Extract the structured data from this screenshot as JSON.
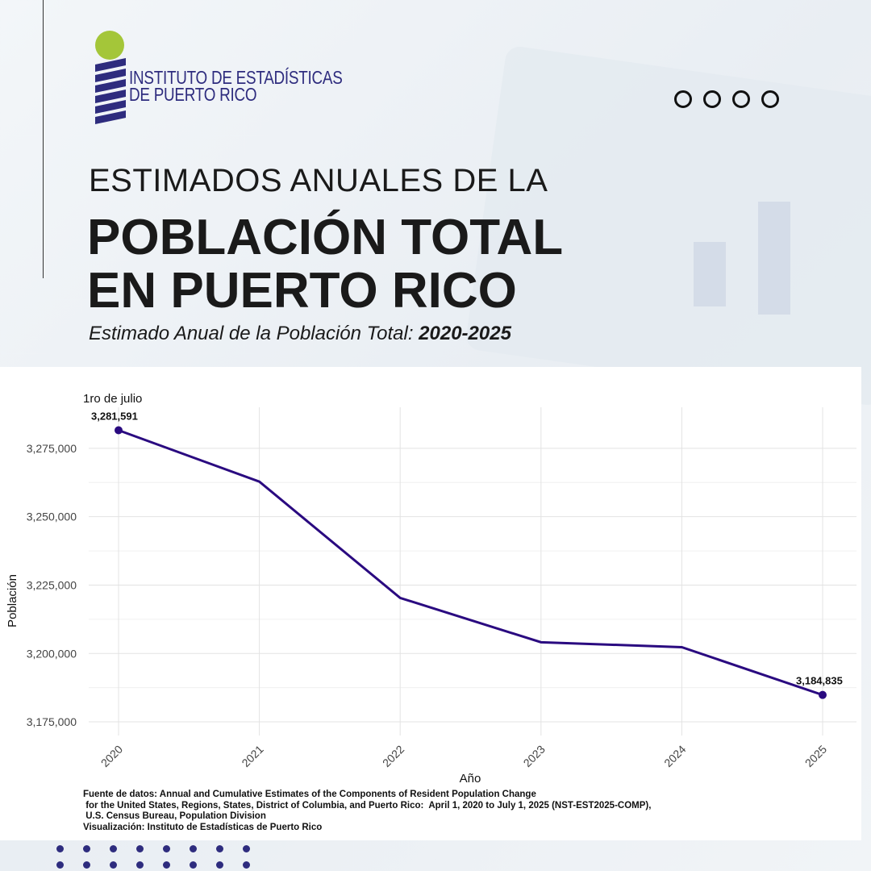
{
  "logo": {
    "line1": "INSTITUTO DE ESTADÍSTICAS",
    "line2": "DE PUERTO RICO"
  },
  "header": {
    "title_line1": "ESTIMADOS ANUALES DE LA",
    "title_line2": "POBLACIÓN TOTAL",
    "title_line3": "EN PUERTO RICO",
    "subtitle_prefix": "Estimado Anual de la Población Total: ",
    "subtitle_range": "2020-2025"
  },
  "chart_data": {
    "type": "line",
    "title": "1ro de julio",
    "xlabel": "Año",
    "ylabel": "Población",
    "x": [
      "2020",
      "2021",
      "2022",
      "2023",
      "2024",
      "2025"
    ],
    "values": [
      3281591,
      3262800,
      3220300,
      3204100,
      3202300,
      3184835
    ],
    "data_labels": {
      "2020": "3,281,591",
      "2025": "3,184,835"
    },
    "ylim": [
      3170000,
      3290000
    ],
    "yticks": [
      3175000,
      3200000,
      3225000,
      3250000,
      3275000
    ],
    "ytick_labels": [
      "3,175,000",
      "3,200,000",
      "3,225,000",
      "3,250,000",
      "3,275,000"
    ],
    "grid": true,
    "color": "#2a0a80"
  },
  "footer": {
    "source": "Fuente de datos: Annual and Cumulative Estimates of the Components of Resident Population Change\n for the United States, Regions, States, District of Columbia, and Puerto Rico:  April 1, 2020 to July 1, 2025 (NST-EST2025-COMP),\n U.S. Census Bureau, Population Division",
    "visualization": "Visualización: Instituto de Estadísticas de Puerto Rico"
  },
  "colors": {
    "brand_blue": "#2e2c7e",
    "brand_green": "#a4c639"
  }
}
